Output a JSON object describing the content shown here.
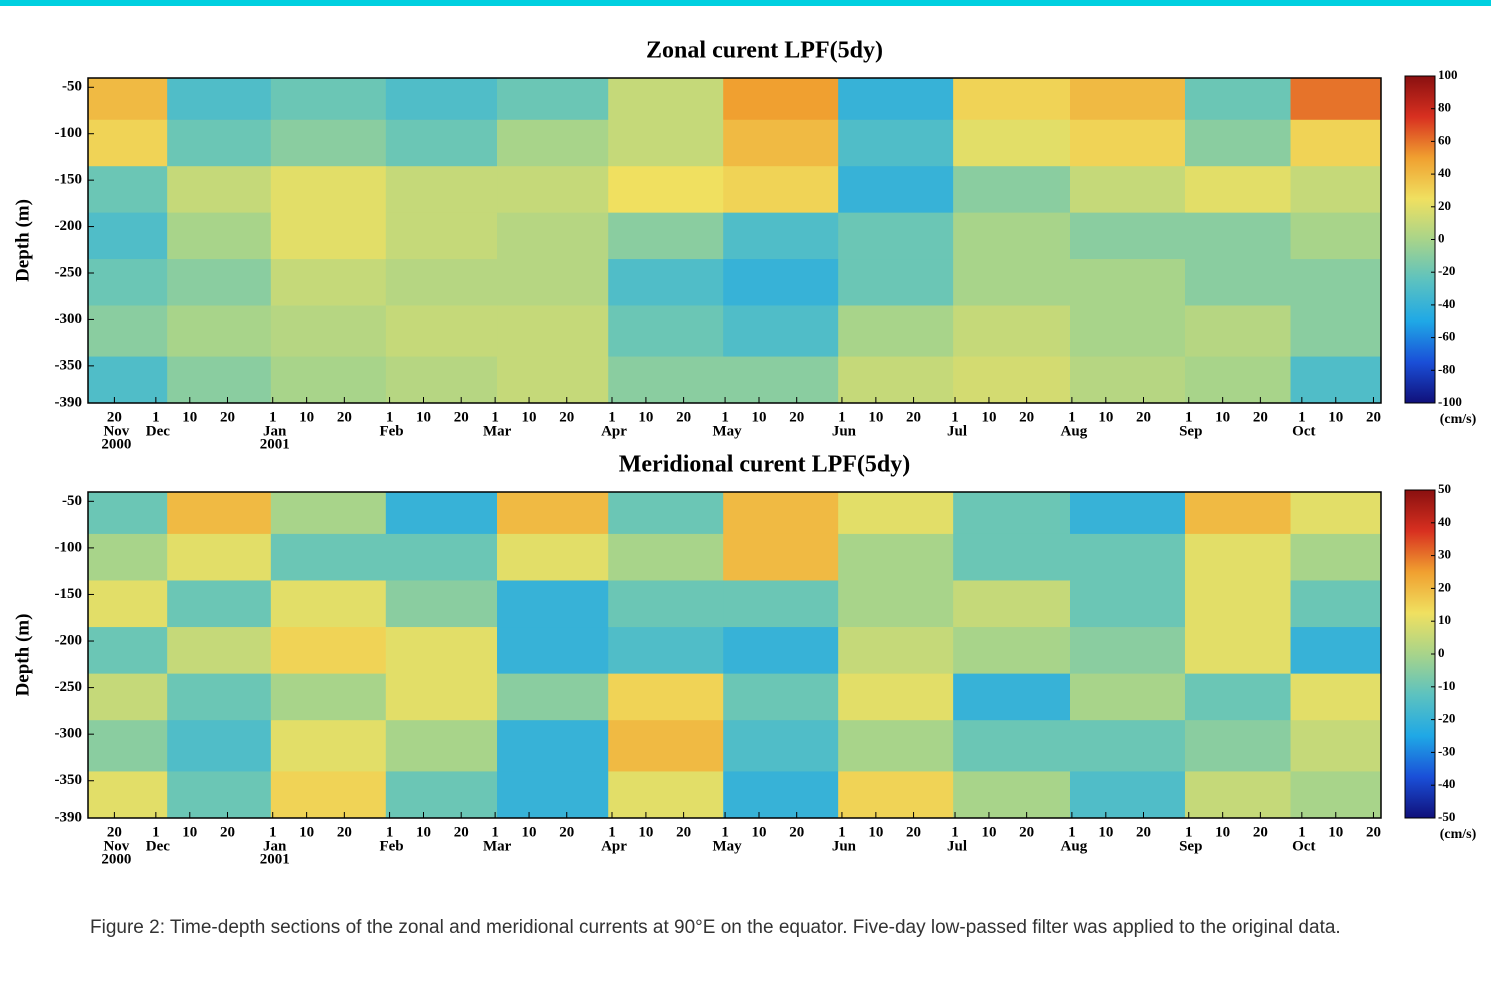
{
  "chart_data": [
    {
      "type": "heatmap",
      "title": "Zonal curent LPF(5dy)",
      "ylabel": "Depth (m)",
      "x": [
        "2000-11-22",
        "2000-12-16",
        "2001-01-16",
        "2001-02-15",
        "2001-03-16",
        "2001-04-15",
        "2001-05-16",
        "2001-06-15",
        "2001-07-16",
        "2001-08-16",
        "2001-09-15",
        "2001-10-11"
      ],
      "y": [
        -60,
        -110,
        -160,
        -210,
        -260,
        -310,
        -370
      ],
      "z": [
        [
          40,
          -30,
          -20,
          -30,
          -20,
          10,
          50,
          -40,
          30,
          40,
          -20,
          60
        ],
        [
          30,
          -20,
          -10,
          -20,
          0,
          10,
          40,
          -30,
          20,
          30,
          -10,
          30
        ],
        [
          -20,
          10,
          20,
          10,
          10,
          25,
          30,
          -40,
          -10,
          10,
          20,
          10
        ],
        [
          -30,
          0,
          20,
          10,
          5,
          -10,
          -30,
          -20,
          0,
          -10,
          -10,
          0
        ],
        [
          -20,
          -10,
          10,
          5,
          5,
          -30,
          -40,
          -20,
          0,
          0,
          -10,
          -10
        ],
        [
          -10,
          0,
          5,
          10,
          10,
          -20,
          -30,
          0,
          10,
          0,
          5,
          -10
        ],
        [
          -30,
          -10,
          0,
          5,
          10,
          -10,
          -10,
          10,
          15,
          5,
          0,
          -30
        ]
      ],
      "xlim": [
        "2000-11-13",
        "2001-10-22"
      ],
      "ylim": [
        -390,
        -40
      ],
      "yticks": [
        -50,
        -100,
        -150,
        -200,
        -250,
        -300,
        -350,
        -390
      ],
      "xticks": [
        {
          "value": "2000-11-20",
          "label": "20"
        },
        {
          "value": "2000-12-01",
          "label": "1"
        },
        {
          "value": "2000-12-10",
          "label": "10"
        },
        {
          "value": "2000-12-20",
          "label": "20"
        },
        {
          "value": "2001-01-01",
          "label": "1"
        },
        {
          "value": "2001-01-10",
          "label": "10"
        },
        {
          "value": "2001-01-20",
          "label": "20"
        },
        {
          "value": "2001-02-01",
          "label": "1"
        },
        {
          "value": "2001-02-10",
          "label": "10"
        },
        {
          "value": "2001-02-20",
          "label": "20"
        },
        {
          "value": "2001-03-01",
          "label": "1"
        },
        {
          "value": "2001-03-10",
          "label": "10"
        },
        {
          "value": "2001-03-20",
          "label": "20"
        },
        {
          "value": "2001-04-01",
          "label": "1"
        },
        {
          "value": "2001-04-10",
          "label": "10"
        },
        {
          "value": "2001-04-20",
          "label": "20"
        },
        {
          "value": "2001-05-01",
          "label": "1"
        },
        {
          "value": "2001-05-10",
          "label": "10"
        },
        {
          "value": "2001-05-20",
          "label": "20"
        },
        {
          "value": "2001-06-01",
          "label": "1"
        },
        {
          "value": "2001-06-10",
          "label": "10"
        },
        {
          "value": "2001-06-20",
          "label": "20"
        },
        {
          "value": "2001-07-01",
          "label": "1"
        },
        {
          "value": "2001-07-10",
          "label": "10"
        },
        {
          "value": "2001-07-20",
          "label": "20"
        },
        {
          "value": "2001-08-01",
          "label": "1"
        },
        {
          "value": "2001-08-10",
          "label": "10"
        },
        {
          "value": "2001-08-20",
          "label": "20"
        },
        {
          "value": "2001-09-01",
          "label": "1"
        },
        {
          "value": "2001-09-10",
          "label": "10"
        },
        {
          "value": "2001-09-20",
          "label": "20"
        },
        {
          "value": "2001-10-01",
          "label": "1"
        },
        {
          "value": "2001-10-10",
          "label": "10"
        },
        {
          "value": "2001-10-20",
          "label": "20"
        }
      ],
      "xmonths": [
        {
          "value": "2000-11-20",
          "label": "Nov"
        },
        {
          "value": "2000-12-01",
          "label": "Dec"
        },
        {
          "value": "2001-01-01",
          "label": "Jan"
        },
        {
          "value": "2001-02-01",
          "label": "Feb"
        },
        {
          "value": "2001-03-01",
          "label": "Mar"
        },
        {
          "value": "2001-04-01",
          "label": "Apr"
        },
        {
          "value": "2001-05-01",
          "label": "May"
        },
        {
          "value": "2001-06-01",
          "label": "Jun"
        },
        {
          "value": "2001-07-01",
          "label": "Jul"
        },
        {
          "value": "2001-08-01",
          "label": "Aug"
        },
        {
          "value": "2001-09-01",
          "label": "Sep"
        },
        {
          "value": "2001-10-01",
          "label": "Oct"
        }
      ],
      "xyears": [
        {
          "value": "2000-11-20",
          "label": "2000"
        },
        {
          "value": "2001-01-01",
          "label": "2001"
        }
      ],
      "clim": [
        -100,
        100
      ],
      "cticks": [
        100,
        80,
        60,
        40,
        20,
        0,
        -20,
        -40,
        -60,
        -80,
        -100
      ],
      "clabel": "(cm/s)",
      "colormap": [
        "#10107a",
        "#1a4fd8",
        "#1fa8e6",
        "#5cc2c0",
        "#a8d48a",
        "#f0e060",
        "#f0a030",
        "#d83020",
        "#8a1010"
      ]
    },
    {
      "type": "heatmap",
      "title": "Meridional curent LPF(5dy)",
      "ylabel": "Depth (m)",
      "x": [
        "2000-11-22",
        "2000-12-16",
        "2001-01-16",
        "2001-02-15",
        "2001-03-16",
        "2001-04-15",
        "2001-05-16",
        "2001-06-15",
        "2001-07-16",
        "2001-08-16",
        "2001-09-15",
        "2001-10-11"
      ],
      "y": [
        -60,
        -110,
        -160,
        -210,
        -260,
        -310,
        -370
      ],
      "z": [
        [
          -10,
          20,
          0,
          -20,
          20,
          -10,
          20,
          10,
          -10,
          -20,
          20,
          10
        ],
        [
          0,
          10,
          -10,
          -10,
          10,
          0,
          20,
          0,
          -10,
          -10,
          10,
          0
        ],
        [
          10,
          -10,
          10,
          -5,
          -20,
          -10,
          -10,
          0,
          5,
          -10,
          10,
          -10
        ],
        [
          -10,
          5,
          15,
          10,
          -20,
          -15,
          -20,
          5,
          0,
          -5,
          10,
          -20
        ],
        [
          5,
          -10,
          0,
          10,
          -5,
          15,
          -10,
          10,
          -20,
          0,
          -10,
          10
        ],
        [
          -5,
          -15,
          10,
          0,
          -20,
          20,
          -15,
          0,
          -10,
          -10,
          -5,
          5
        ],
        [
          10,
          -10,
          15,
          -10,
          -20,
          10,
          -20,
          15,
          0,
          -15,
          5,
          0
        ]
      ],
      "xlim": [
        "2000-11-13",
        "2001-10-22"
      ],
      "ylim": [
        -390,
        -40
      ],
      "yticks": [
        -50,
        -100,
        -150,
        -200,
        -250,
        -300,
        -350,
        -390
      ],
      "xticks": [
        {
          "value": "2000-11-20",
          "label": "20"
        },
        {
          "value": "2000-12-01",
          "label": "1"
        },
        {
          "value": "2000-12-10",
          "label": "10"
        },
        {
          "value": "2000-12-20",
          "label": "20"
        },
        {
          "value": "2001-01-01",
          "label": "1"
        },
        {
          "value": "2001-01-10",
          "label": "10"
        },
        {
          "value": "2001-01-20",
          "label": "20"
        },
        {
          "value": "2001-02-01",
          "label": "1"
        },
        {
          "value": "2001-02-10",
          "label": "10"
        },
        {
          "value": "2001-02-20",
          "label": "20"
        },
        {
          "value": "2001-03-01",
          "label": "1"
        },
        {
          "value": "2001-03-10",
          "label": "10"
        },
        {
          "value": "2001-03-20",
          "label": "20"
        },
        {
          "value": "2001-04-01",
          "label": "1"
        },
        {
          "value": "2001-04-10",
          "label": "10"
        },
        {
          "value": "2001-04-20",
          "label": "20"
        },
        {
          "value": "2001-05-01",
          "label": "1"
        },
        {
          "value": "2001-05-10",
          "label": "10"
        },
        {
          "value": "2001-05-20",
          "label": "20"
        },
        {
          "value": "2001-06-01",
          "label": "1"
        },
        {
          "value": "2001-06-10",
          "label": "10"
        },
        {
          "value": "2001-06-20",
          "label": "20"
        },
        {
          "value": "2001-07-01",
          "label": "1"
        },
        {
          "value": "2001-07-10",
          "label": "10"
        },
        {
          "value": "2001-07-20",
          "label": "20"
        },
        {
          "value": "2001-08-01",
          "label": "1"
        },
        {
          "value": "2001-08-10",
          "label": "10"
        },
        {
          "value": "2001-08-20",
          "label": "20"
        },
        {
          "value": "2001-09-01",
          "label": "1"
        },
        {
          "value": "2001-09-10",
          "label": "10"
        },
        {
          "value": "2001-09-20",
          "label": "20"
        },
        {
          "value": "2001-10-01",
          "label": "1"
        },
        {
          "value": "2001-10-10",
          "label": "10"
        },
        {
          "value": "2001-10-20",
          "label": "20"
        }
      ],
      "xmonths": [
        {
          "value": "2000-11-20",
          "label": "Nov"
        },
        {
          "value": "2000-12-01",
          "label": "Dec"
        },
        {
          "value": "2001-01-01",
          "label": "Jan"
        },
        {
          "value": "2001-02-01",
          "label": "Feb"
        },
        {
          "value": "2001-03-01",
          "label": "Mar"
        },
        {
          "value": "2001-04-01",
          "label": "Apr"
        },
        {
          "value": "2001-05-01",
          "label": "May"
        },
        {
          "value": "2001-06-01",
          "label": "Jun"
        },
        {
          "value": "2001-07-01",
          "label": "Jul"
        },
        {
          "value": "2001-08-01",
          "label": "Aug"
        },
        {
          "value": "2001-09-01",
          "label": "Sep"
        },
        {
          "value": "2001-10-01",
          "label": "Oct"
        }
      ],
      "xyears": [
        {
          "value": "2000-11-20",
          "label": "2000"
        },
        {
          "value": "2001-01-01",
          "label": "2001"
        }
      ],
      "clim": [
        -50,
        50
      ],
      "cticks": [
        50,
        40,
        30,
        20,
        10,
        0,
        -10,
        -20,
        -30,
        -40,
        -50
      ],
      "clabel": "(cm/s)",
      "colormap": [
        "#10107a",
        "#1a4fd8",
        "#1fa8e6",
        "#5cc2c0",
        "#a8d48a",
        "#f0e060",
        "#f0a030",
        "#d83020",
        "#8a1010"
      ]
    }
  ],
  "caption": "Figure 2: Time-depth sections of the zonal and meridional currents at 90°E on the equator. Five-day low-passed filter was applied to the original data."
}
